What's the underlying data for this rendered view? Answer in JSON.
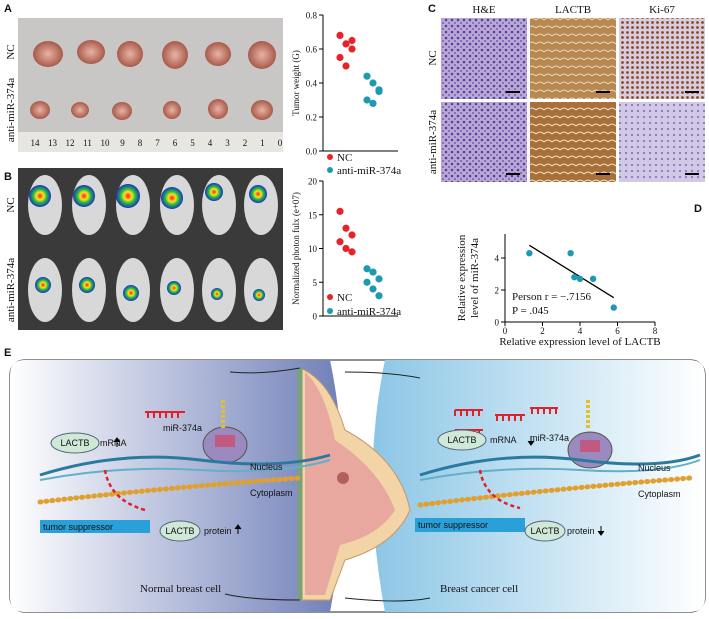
{
  "panel_labels": [
    "A",
    "B",
    "C",
    "D",
    "E"
  ],
  "photos": {
    "A": {
      "rows": [
        "NC",
        "anti-miR-374a"
      ],
      "ruler": [
        "0",
        "1",
        "2",
        "3",
        "4",
        "5",
        "6",
        "7",
        "8",
        "9",
        "10",
        "11",
        "12",
        "13",
        "14"
      ]
    },
    "B": {
      "rows": [
        "NC",
        "anti-miR-374a"
      ]
    },
    "C": {
      "columns": [
        "H&E",
        "LACTB",
        "Ki-67"
      ],
      "rows": [
        "NC",
        "anti-miR-374a"
      ]
    }
  },
  "chart_data": [
    {
      "type": "strip",
      "ylabel": "Tumor weight (G)",
      "ylim": [
        0,
        0.8
      ],
      "yticks": [
        {
          "value": 0,
          "label": "0.0"
        },
        {
          "value": 0.2,
          "label": "0.2"
        },
        {
          "value": 0.4,
          "label": "0.4"
        },
        {
          "value": 0.6,
          "label": "0.6"
        },
        {
          "value": 0.8,
          "label": "0.8"
        }
      ],
      "series": [
        {
          "name": "NC",
          "color": "#e8222a",
          "values": [
            0.68,
            0.63,
            0.6,
            0.55,
            0.5,
            0.65
          ]
        },
        {
          "name": "anti-miR-374a",
          "color": "#1e9ab0",
          "values": [
            0.44,
            0.4,
            0.36,
            0.3,
            0.28,
            0.35
          ]
        }
      ]
    },
    {
      "type": "strip",
      "ylabel": "Normalized photon fulx (e+07)",
      "ylim": [
        0,
        20
      ],
      "yticks": [
        0,
        5,
        10,
        15,
        20
      ],
      "series": [
        {
          "name": "NC",
          "color": "#e8222a",
          "values": [
            15.5,
            13,
            12,
            11,
            10,
            9.5
          ]
        },
        {
          "name": "anti-miR-374a",
          "color": "#1e9ab0",
          "values": [
            7,
            6.5,
            5.5,
            5,
            4,
            3
          ]
        }
      ]
    },
    {
      "type": "scatter",
      "xlabel": "Relative expression level of LACTB",
      "ylabel": [
        "Relative expression",
        "level of miR-374a"
      ],
      "annotations": [
        "Person r = −.7156",
        "P = .045"
      ],
      "xlim": [
        0,
        8
      ],
      "xticks": [
        0,
        2,
        4,
        6,
        8
      ],
      "ylim": [
        0,
        5.5
      ],
      "yticks": [
        0,
        2,
        4
      ],
      "color": "#1e9ab0",
      "x": [
        1.3,
        3.5,
        3.7,
        4.0,
        4.7,
        5.8
      ],
      "values": [
        4.3,
        4.3,
        2.8,
        2.7,
        2.7,
        0.9
      ]
    }
  ],
  "diagram": {
    "left": {
      "mirna": "miR-374a",
      "gene": "LACTB",
      "mrna": "mRNA",
      "nucleus": "Nucleus",
      "cytoplasm": "Cytoplasm",
      "suppressor": "tumor suppressor",
      "protein_gene": "LACTB",
      "protein": "protein",
      "caption": "Normal  breast cell"
    },
    "right": {
      "mirna": "miR-374a",
      "gene": "LACTB",
      "mrna": "mRNA",
      "nucleus": "Nucleus",
      "cytoplasm": "Cytoplasm",
      "suppressor": "tumor suppressor",
      "protein_gene": "LACTB",
      "protein": "protein",
      "caption": "Breast cancer cell"
    }
  }
}
